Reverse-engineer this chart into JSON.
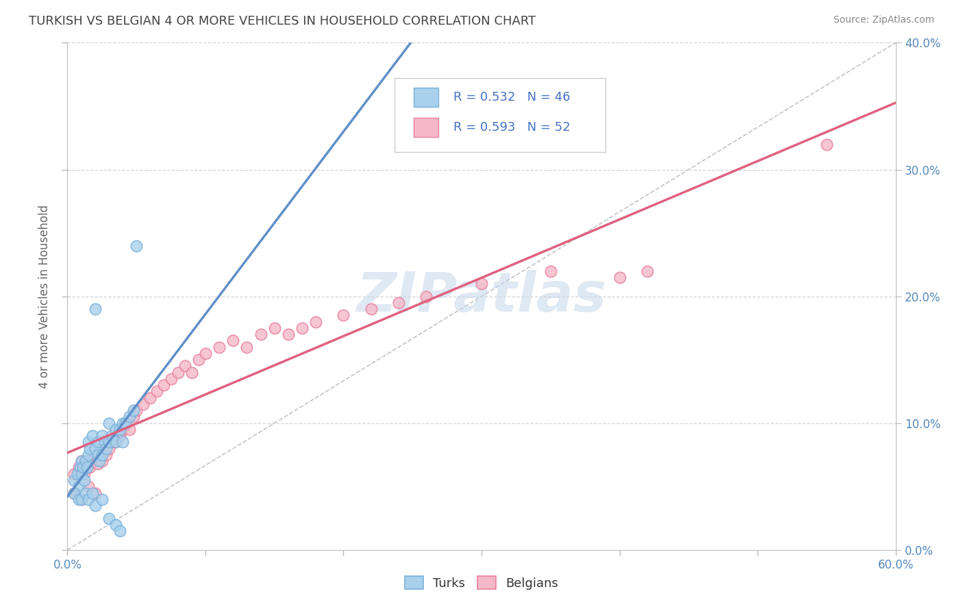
{
  "title": "TURKISH VS BELGIAN 4 OR MORE VEHICLES IN HOUSEHOLD CORRELATION CHART",
  "source": "Source: ZipAtlas.com",
  "ylabel": "4 or more Vehicles in Household",
  "x_min": 0.0,
  "x_max": 0.6,
  "y_min": 0.0,
  "y_max": 0.4,
  "turks_color": "#a8d0ec",
  "belgians_color": "#f5b8c8",
  "turks_edge_color": "#7ab0d8",
  "belgians_edge_color": "#e8809a",
  "turks_line_color": "#6090c8",
  "belgians_line_color": "#e06080",
  "turks_R": 0.532,
  "turks_N": 46,
  "belgians_R": 0.593,
  "belgians_N": 52,
  "legend_color": "#4472c4",
  "watermark_color": "#c5d8ea",
  "background_color": "#ffffff",
  "grid_color": "#d0d0d0",
  "axis_color": "#bbbbbb",
  "tick_label_color": "#5588bb",
  "title_color": "#444444",
  "source_color": "#888888",
  "ylabel_color": "#666666",
  "turks_scatter": [
    [
      0.005,
      0.055
    ],
    [
      0.007,
      0.06
    ],
    [
      0.008,
      0.05
    ],
    [
      0.009,
      0.065
    ],
    [
      0.01,
      0.07
    ],
    [
      0.01,
      0.06
    ],
    [
      0.011,
      0.065
    ],
    [
      0.012,
      0.055
    ],
    [
      0.013,
      0.07
    ],
    [
      0.014,
      0.065
    ],
    [
      0.015,
      0.085
    ],
    [
      0.015,
      0.075
    ],
    [
      0.016,
      0.08
    ],
    [
      0.018,
      0.09
    ],
    [
      0.02,
      0.08
    ],
    [
      0.02,
      0.19
    ],
    [
      0.022,
      0.085
    ],
    [
      0.022,
      0.075
    ],
    [
      0.023,
      0.07
    ],
    [
      0.025,
      0.09
    ],
    [
      0.025,
      0.075
    ],
    [
      0.027,
      0.085
    ],
    [
      0.028,
      0.08
    ],
    [
      0.03,
      0.1
    ],
    [
      0.03,
      0.085
    ],
    [
      0.032,
      0.09
    ],
    [
      0.035,
      0.095
    ],
    [
      0.035,
      0.085
    ],
    [
      0.038,
      0.095
    ],
    [
      0.04,
      0.1
    ],
    [
      0.04,
      0.085
    ],
    [
      0.042,
      0.1
    ],
    [
      0.045,
      0.105
    ],
    [
      0.048,
      0.11
    ],
    [
      0.05,
      0.24
    ],
    [
      0.005,
      0.045
    ],
    [
      0.008,
      0.04
    ],
    [
      0.01,
      0.04
    ],
    [
      0.013,
      0.045
    ],
    [
      0.015,
      0.04
    ],
    [
      0.018,
      0.045
    ],
    [
      0.02,
      0.035
    ],
    [
      0.025,
      0.04
    ],
    [
      0.03,
      0.025
    ],
    [
      0.035,
      0.02
    ],
    [
      0.038,
      0.015
    ]
  ],
  "belgians_scatter": [
    [
      0.005,
      0.06
    ],
    [
      0.008,
      0.065
    ],
    [
      0.01,
      0.07
    ],
    [
      0.012,
      0.06
    ],
    [
      0.014,
      0.065
    ],
    [
      0.015,
      0.07
    ],
    [
      0.016,
      0.065
    ],
    [
      0.018,
      0.07
    ],
    [
      0.02,
      0.075
    ],
    [
      0.022,
      0.068
    ],
    [
      0.025,
      0.07
    ],
    [
      0.028,
      0.075
    ],
    [
      0.03,
      0.08
    ],
    [
      0.032,
      0.085
    ],
    [
      0.035,
      0.085
    ],
    [
      0.038,
      0.09
    ],
    [
      0.04,
      0.095
    ],
    [
      0.042,
      0.1
    ],
    [
      0.045,
      0.095
    ],
    [
      0.048,
      0.105
    ],
    [
      0.05,
      0.11
    ],
    [
      0.055,
      0.115
    ],
    [
      0.06,
      0.12
    ],
    [
      0.065,
      0.125
    ],
    [
      0.07,
      0.13
    ],
    [
      0.075,
      0.135
    ],
    [
      0.08,
      0.14
    ],
    [
      0.085,
      0.145
    ],
    [
      0.09,
      0.14
    ],
    [
      0.095,
      0.15
    ],
    [
      0.1,
      0.155
    ],
    [
      0.11,
      0.16
    ],
    [
      0.12,
      0.165
    ],
    [
      0.13,
      0.16
    ],
    [
      0.14,
      0.17
    ],
    [
      0.15,
      0.175
    ],
    [
      0.16,
      0.17
    ],
    [
      0.17,
      0.175
    ],
    [
      0.18,
      0.18
    ],
    [
      0.2,
      0.185
    ],
    [
      0.22,
      0.19
    ],
    [
      0.24,
      0.195
    ],
    [
      0.26,
      0.2
    ],
    [
      0.3,
      0.21
    ],
    [
      0.35,
      0.22
    ],
    [
      0.4,
      0.215
    ],
    [
      0.42,
      0.22
    ],
    [
      0.005,
      0.045
    ],
    [
      0.01,
      0.04
    ],
    [
      0.015,
      0.05
    ],
    [
      0.02,
      0.045
    ],
    [
      0.55,
      0.32
    ]
  ],
  "dashed_line_color": "#aaaaaa",
  "x_ticks": [
    0.0,
    0.1,
    0.2,
    0.3,
    0.4,
    0.5,
    0.6
  ],
  "y_ticks": [
    0.0,
    0.1,
    0.2,
    0.3,
    0.4
  ]
}
